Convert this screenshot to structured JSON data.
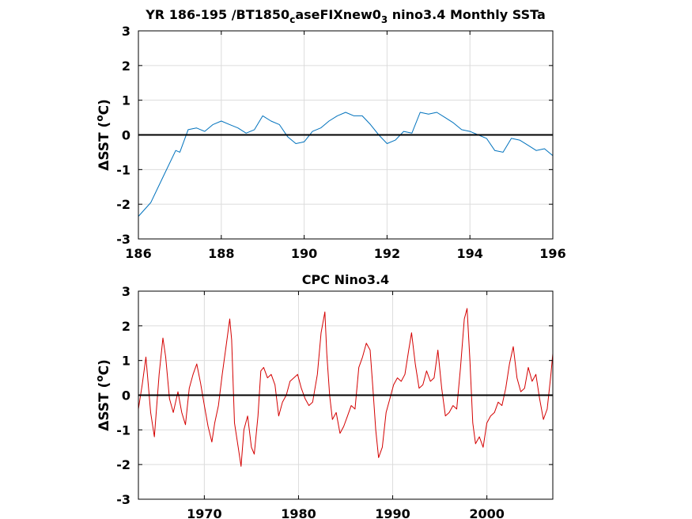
{
  "chart_data": [
    {
      "type": "line",
      "title": "YR 186-195 /BT1850_caseFIXnew0_3 nino3.4 Monthly SSTa",
      "title_parts": [
        {
          "text": "YR 186-195 /BT1850",
          "sub": false
        },
        {
          "text": "c",
          "sub": true
        },
        {
          "text": "aseFIXnew0",
          "sub": false
        },
        {
          "text": "3",
          "sub": true
        },
        {
          "text": " nino3.4 Monthly SSTa",
          "sub": false
        }
      ],
      "ylabel": "ΔSST (°C)",
      "ylabel_parts": [
        {
          "text": "ΔSST (",
          "sup": false
        },
        {
          "text": "o",
          "sup": true
        },
        {
          "text": "C)",
          "sup": false
        }
      ],
      "xlim": [
        186,
        196
      ],
      "ylim": [
        -3,
        3
      ],
      "xticks": [
        "186",
        "188",
        "190",
        "192",
        "194",
        "196"
      ],
      "xtick_values": [
        186,
        188,
        190,
        192,
        194,
        196
      ],
      "yticks": [
        "-3",
        "-2",
        "-1",
        "0",
        "1",
        "2",
        "3"
      ],
      "ytick_values": [
        -3,
        -2,
        -1,
        0,
        1,
        2,
        3
      ],
      "grid": true,
      "zero_line": true,
      "series": [
        {
          "color": "#0072bd",
          "x": [
            186.0,
            186.3,
            186.6,
            186.9,
            187.0,
            187.2,
            187.4,
            187.6,
            187.8,
            188.0,
            188.2,
            188.4,
            188.6,
            188.8,
            189.0,
            189.2,
            189.4,
            189.6,
            189.8,
            190.0,
            190.2,
            190.4,
            190.6,
            190.8,
            191.0,
            191.2,
            191.4,
            191.6,
            191.8,
            192.0,
            192.2,
            192.4,
            192.6,
            192.8,
            193.0,
            193.2,
            193.4,
            193.6,
            193.8,
            194.0,
            194.2,
            194.4,
            194.6,
            194.8,
            195.0,
            195.2,
            195.4,
            195.6,
            195.8,
            196.0
          ],
          "y": [
            -2.35,
            -1.95,
            -1.2,
            -0.45,
            -0.5,
            0.15,
            0.2,
            0.1,
            0.3,
            0.4,
            0.3,
            0.2,
            0.05,
            0.15,
            0.55,
            0.4,
            0.3,
            -0.05,
            -0.25,
            -0.2,
            0.1,
            0.2,
            0.4,
            0.55,
            0.65,
            0.55,
            0.55,
            0.3,
            0.0,
            -0.25,
            -0.15,
            0.1,
            0.05,
            0.65,
            0.6,
            0.65,
            0.5,
            0.35,
            0.15,
            0.1,
            0.0,
            -0.1,
            -0.45,
            -0.5,
            -0.1,
            -0.15,
            -0.3,
            -0.45,
            -0.4,
            -0.6
          ]
        }
      ]
    },
    {
      "type": "line",
      "title": "CPC Nino3.4",
      "ylabel": "ΔSST (°C)",
      "ylabel_parts": [
        {
          "text": "ΔSST (",
          "sup": false
        },
        {
          "text": "o",
          "sup": true
        },
        {
          "text": "C)",
          "sup": false
        }
      ],
      "xlim": [
        1963,
        2007
      ],
      "ylim": [
        -3,
        3
      ],
      "xticks": [
        "1970",
        "1980",
        "1990",
        "2000"
      ],
      "xtick_values": [
        1970,
        1980,
        1990,
        2000
      ],
      "yticks": [
        "-3",
        "-2",
        "-1",
        "0",
        "1",
        "2",
        "3"
      ],
      "ytick_values": [
        -3,
        -2,
        -1,
        0,
        1,
        2,
        3
      ],
      "grid": true,
      "zero_line": true,
      "series": [
        {
          "color": "#d40000",
          "x": [
            1963.0,
            1963.4,
            1963.8,
            1964.3,
            1964.7,
            1965.2,
            1965.6,
            1965.9,
            1966.3,
            1966.7,
            1967.2,
            1967.6,
            1968.0,
            1968.4,
            1968.8,
            1969.2,
            1969.6,
            1970.0,
            1970.4,
            1970.8,
            1971.1,
            1971.5,
            1971.9,
            1972.3,
            1972.7,
            1972.9,
            1973.2,
            1973.6,
            1973.9,
            1974.2,
            1974.6,
            1975.0,
            1975.3,
            1975.7,
            1976.0,
            1976.3,
            1976.7,
            1977.1,
            1977.5,
            1977.9,
            1978.3,
            1978.7,
            1979.1,
            1979.5,
            1979.9,
            1980.3,
            1980.7,
            1981.1,
            1981.5,
            1982.0,
            1982.4,
            1982.8,
            1983.0,
            1983.3,
            1983.6,
            1984.0,
            1984.4,
            1984.8,
            1985.2,
            1985.6,
            1986.0,
            1986.4,
            1986.8,
            1987.2,
            1987.6,
            1987.9,
            1988.2,
            1988.5,
            1988.9,
            1989.3,
            1989.7,
            1990.1,
            1990.5,
            1990.9,
            1991.3,
            1991.7,
            1992.0,
            1992.4,
            1992.8,
            1993.2,
            1993.6,
            1994.0,
            1994.4,
            1994.8,
            1995.2,
            1995.6,
            1996.0,
            1996.4,
            1996.8,
            1997.2,
            1997.6,
            1997.9,
            1998.2,
            1998.5,
            1998.8,
            1999.2,
            1999.6,
            2000.0,
            2000.4,
            2000.8,
            2001.2,
            2001.6,
            2002.0,
            2002.4,
            2002.8,
            2003.2,
            2003.6,
            2004.0,
            2004.4,
            2004.8,
            2005.2,
            2005.6,
            2006.0,
            2006.4,
            2006.8,
            2007.0
          ],
          "y": [
            -0.4,
            0.3,
            1.1,
            -0.5,
            -1.2,
            0.6,
            1.65,
            1.1,
            -0.1,
            -0.5,
            0.1,
            -0.5,
            -0.85,
            0.2,
            0.6,
            0.9,
            0.35,
            -0.3,
            -0.9,
            -1.35,
            -0.8,
            -0.3,
            0.6,
            1.4,
            2.2,
            1.6,
            -0.8,
            -1.5,
            -2.05,
            -1.0,
            -0.6,
            -1.5,
            -1.7,
            -0.6,
            0.7,
            0.8,
            0.5,
            0.6,
            0.3,
            -0.6,
            -0.2,
            0.0,
            0.4,
            0.5,
            0.6,
            0.2,
            -0.1,
            -0.3,
            -0.2,
            0.6,
            1.8,
            2.4,
            1.2,
            0.0,
            -0.7,
            -0.5,
            -1.1,
            -0.9,
            -0.6,
            -0.3,
            -0.4,
            0.8,
            1.1,
            1.5,
            1.3,
            0.2,
            -1.0,
            -1.8,
            -1.5,
            -0.5,
            -0.1,
            0.3,
            0.5,
            0.4,
            0.6,
            1.3,
            1.8,
            0.9,
            0.2,
            0.3,
            0.7,
            0.4,
            0.5,
            1.3,
            0.2,
            -0.6,
            -0.5,
            -0.3,
            -0.4,
            0.8,
            2.2,
            2.5,
            1.0,
            -0.8,
            -1.4,
            -1.2,
            -1.5,
            -0.8,
            -0.6,
            -0.5,
            -0.2,
            -0.3,
            0.2,
            0.9,
            1.4,
            0.5,
            0.1,
            0.2,
            0.8,
            0.4,
            0.6,
            -0.1,
            -0.7,
            -0.4,
            0.6,
            1.2
          ]
        }
      ]
    }
  ]
}
